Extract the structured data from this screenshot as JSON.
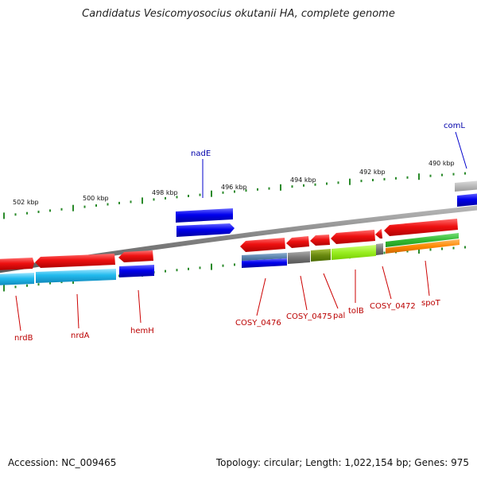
{
  "title": "Candidatus Vesicomyosocius okutanii HA, complete genome",
  "footer": {
    "accession": "Accession: NC_009465",
    "summary": "Topology: circular; Length: 1,022,154 bp; Genes: 975"
  },
  "colors": {
    "backbone": "#888888",
    "tick": "#2a8a2a",
    "red_gene": "#ee1111",
    "blue_gene": "#0000ee",
    "cyan_cds": "#22bbee",
    "gray_cds": "#777777",
    "olive_cds": "#6a8a10",
    "lime_cds": "#99ee22",
    "green_cds": "#33bb33",
    "orange_cds": "#ff8800",
    "slate_cds": "#5f87b0",
    "label_blue": "#0000aa",
    "label_red": "#bb0000"
  },
  "scale": {
    "unit": "kbp",
    "labels": [
      "502 kbp",
      "500 kbp",
      "498 kbp",
      "496 kbp",
      "494 kbp",
      "492 kbp",
      "490 kbp"
    ]
  },
  "genes": {
    "top": [
      "nadE",
      "comL"
    ],
    "bottom": [
      "nrdB",
      "nrdA",
      "hemH",
      "COSY_0476",
      "COSY_0475",
      "pal",
      "tolB",
      "COSY_0472",
      "spoT"
    ]
  }
}
